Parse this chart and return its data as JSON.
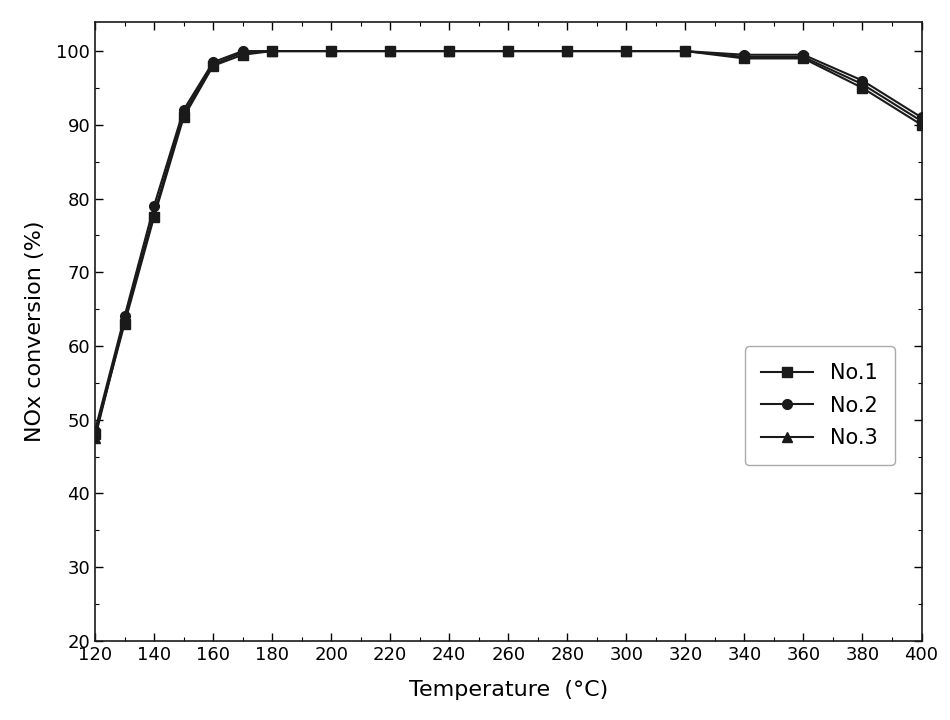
{
  "temperature": [
    120,
    130,
    140,
    150,
    160,
    170,
    180,
    200,
    220,
    240,
    260,
    280,
    300,
    320,
    340,
    360,
    380,
    400
  ],
  "no1": [
    48.0,
    63.0,
    77.5,
    91.0,
    98.0,
    99.5,
    100.0,
    100.0,
    100.0,
    100.0,
    100.0,
    100.0,
    100.0,
    100.0,
    99.0,
    99.0,
    95.0,
    90.0
  ],
  "no2": [
    48.5,
    64.0,
    79.0,
    92.0,
    98.5,
    100.0,
    100.0,
    100.0,
    100.0,
    100.0,
    100.0,
    100.0,
    100.0,
    100.0,
    99.5,
    99.5,
    96.0,
    91.0
  ],
  "no3": [
    47.5,
    63.5,
    78.0,
    91.5,
    98.2,
    99.8,
    100.0,
    100.0,
    100.0,
    100.0,
    100.0,
    100.0,
    100.0,
    100.0,
    99.2,
    99.2,
    95.5,
    90.5
  ],
  "ylabel": "NOx conversion (%)",
  "xlabel": "Temperature （°C）",
  "ylim": [
    20,
    104
  ],
  "yticks": [
    20,
    30,
    40,
    50,
    60,
    70,
    80,
    90,
    100
  ],
  "xticks": [
    120,
    140,
    160,
    180,
    200,
    220,
    240,
    260,
    280,
    300,
    320,
    340,
    360,
    380,
    400
  ],
  "line_color": "#1a1a1a",
  "marker_size": 7,
  "linewidth": 1.5,
  "legend_labels": [
    "No.1",
    "No.2",
    "No.3"
  ],
  "legend_markers": [
    "s",
    "o",
    "^"
  ],
  "background_color": "#ffffff",
  "legend_fontsize": 15
}
